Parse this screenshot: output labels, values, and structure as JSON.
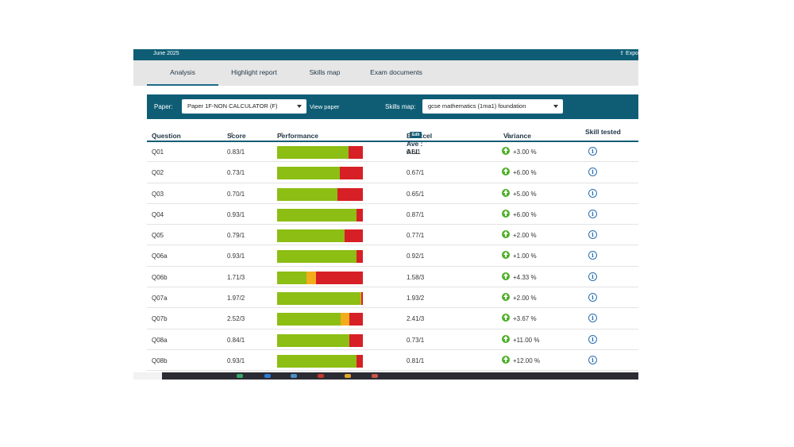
{
  "topbar": {
    "date": "June 2025",
    "export_label": "Expo",
    "export_icon": "export-icon"
  },
  "tabs": [
    {
      "label": "Analysis",
      "active": true
    },
    {
      "label": "Highlight report",
      "active": false
    },
    {
      "label": "Skills map",
      "active": false
    },
    {
      "label": "Exam documents",
      "active": false
    }
  ],
  "filters": {
    "paper_label": "Paper:",
    "paper_value": "Paper 1F-NON CALCULATOR (F)",
    "view_paper": "View paper",
    "skills_map_label": "Skills map:",
    "skills_map_value": "gcse mathematics (1ma1) foundation"
  },
  "columns": {
    "question": "Question",
    "question_sort": "↓",
    "score": "Score",
    "performance": "Performance",
    "average": "Edexcel Ave : ALL",
    "average_badge": "Edit",
    "variance": "Variance",
    "skill": "Skill tested",
    "sort_glyph": "⇕"
  },
  "rows": [
    {
      "q": "Q01",
      "score": "0.83/1",
      "ave": "0.8/1",
      "var": "+3.00 %",
      "perf": [
        0.83,
        0,
        0.17
      ]
    },
    {
      "q": "Q02",
      "score": "0.73/1",
      "ave": "0.67/1",
      "var": "+6.00 %",
      "perf": [
        0.73,
        0,
        0.27
      ]
    },
    {
      "q": "Q03",
      "score": "0.70/1",
      "ave": "0.65/1",
      "var": "+5.00 %",
      "perf": [
        0.7,
        0,
        0.3
      ]
    },
    {
      "q": "Q04",
      "score": "0.93/1",
      "ave": "0.87/1",
      "var": "+6.00 %",
      "perf": [
        0.93,
        0,
        0.07
      ]
    },
    {
      "q": "Q05",
      "score": "0.79/1",
      "ave": "0.77/1",
      "var": "+2.00 %",
      "perf": [
        0.79,
        0,
        0.21
      ]
    },
    {
      "q": "Q06a",
      "score": "0.93/1",
      "ave": "0.92/1",
      "var": "+1.00 %",
      "perf": [
        0.93,
        0,
        0.07
      ]
    },
    {
      "q": "Q06b",
      "score": "1.71/3",
      "ave": "1.58/3",
      "var": "+4.33 %",
      "perf": [
        0.34,
        0.11,
        0.55
      ]
    },
    {
      "q": "Q07a",
      "score": "1.97/2",
      "ave": "1.93/2",
      "var": "+2.00 %",
      "perf": [
        0.97,
        0.01,
        0.02
      ]
    },
    {
      "q": "Q07b",
      "score": "2.52/3",
      "ave": "2.41/3",
      "var": "+3.67 %",
      "perf": [
        0.74,
        0.1,
        0.16
      ]
    },
    {
      "q": "Q08a",
      "score": "0.84/1",
      "ave": "0.73/1",
      "var": "+11.00 %",
      "perf": [
        0.84,
        0,
        0.16
      ]
    },
    {
      "q": "Q08b",
      "score": "0.93/1",
      "ave": "0.81/1",
      "var": "+12.00 %",
      "perf": [
        0.93,
        0,
        0.07
      ]
    }
  ],
  "colors": {
    "correct": "#8cbe14",
    "partial": "#f3ac1c",
    "incorrect": "#d71f26",
    "accent": "#0e5d75"
  },
  "icons": {
    "variance": "arrow-up-circle-icon",
    "skill": "info-icon"
  },
  "info_glyph": "i"
}
